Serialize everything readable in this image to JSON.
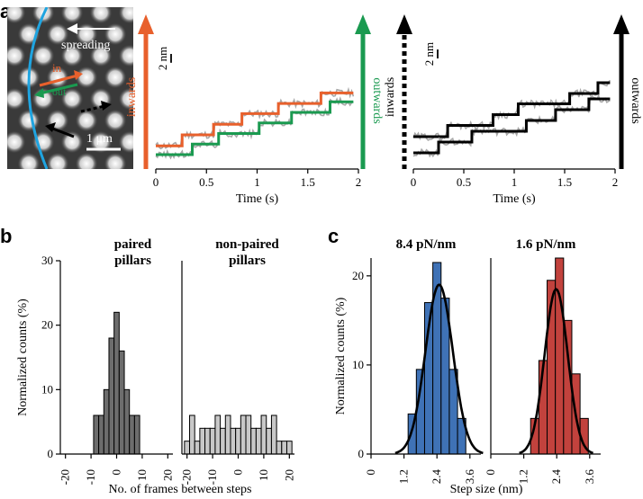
{
  "panels": {
    "a": "a",
    "b": "b",
    "c": "c"
  },
  "micrograph": {
    "spreading_label": "spreading",
    "in_label": "in",
    "out_label": "out",
    "scalebar_label": "1 μm"
  },
  "colors": {
    "inwards": "#e8602c",
    "outwards": "#1a9a50",
    "black": "#000000",
    "raw_trace": "#a8a8a8",
    "hist_dark": "#6d6d6d",
    "hist_light": "#c8c8c8",
    "hist_blue": "#3f72b6",
    "hist_red": "#c2423d",
    "membrane": "#1fa4e0"
  },
  "chart_data": [
    {
      "id": "traces-colored",
      "type": "line",
      "xlabel": "Time (s)",
      "xlim": [
        0,
        2
      ],
      "xticks": [
        "0",
        "0.5",
        "1",
        "1.5",
        "2"
      ],
      "scalebar_label": "2 nm",
      "left_arrow_label": "inwards",
      "right_arrow_label": "outwards",
      "series": [
        {
          "name": "inwards",
          "steps": [
            [
              0,
              0
            ],
            [
              0.26,
              2.5
            ],
            [
              0.57,
              4.9
            ],
            [
              0.85,
              7.3
            ],
            [
              1.21,
              9.6
            ],
            [
              1.63,
              12.0
            ],
            [
              1.95,
              12.0
            ]
          ]
        },
        {
          "name": "outwards",
          "steps": [
            [
              0,
              -2.0
            ],
            [
              0.36,
              0.4
            ],
            [
              0.62,
              2.8
            ],
            [
              1.02,
              5.2
            ],
            [
              1.34,
              7.6
            ],
            [
              1.72,
              10.0
            ],
            [
              1.95,
              10.0
            ]
          ]
        }
      ]
    },
    {
      "id": "traces-black",
      "type": "line",
      "xlabel": "Time (s)",
      "xlim": [
        0,
        2
      ],
      "xticks": [
        "0",
        "0.5",
        "1",
        "1.5",
        "2"
      ],
      "scalebar_label": "2 nm",
      "left_arrow_label": "inwards",
      "right_arrow_label": "outwards",
      "series": [
        {
          "name": "inwards",
          "steps": [
            [
              0,
              0
            ],
            [
              0.34,
              2.5
            ],
            [
              0.79,
              4.9
            ],
            [
              1.04,
              7.3
            ],
            [
              1.55,
              9.6
            ],
            [
              1.83,
              12.0
            ],
            [
              1.95,
              12.0
            ]
          ]
        },
        {
          "name": "outwards",
          "steps": [
            [
              0,
              -3.6
            ],
            [
              0.1,
              -3.6
            ],
            [
              0.25,
              -1.2
            ],
            [
              0.58,
              1.2
            ],
            [
              1.12,
              3.6
            ],
            [
              1.41,
              6.0
            ],
            [
              1.74,
              8.4
            ],
            [
              1.95,
              8.4
            ]
          ]
        }
      ]
    },
    {
      "id": "hist-paired",
      "type": "bar",
      "title": "paired\npillars",
      "ylabel": "Normalized counts (%)",
      "ylim": [
        0,
        30
      ],
      "yticks": [
        0,
        10,
        20,
        30
      ],
      "xlim": [
        -22,
        22
      ],
      "xticks": [
        -20,
        -10,
        0,
        10,
        20
      ],
      "bin_width": 2,
      "bins_start": [
        -9,
        -7,
        -5,
        -3,
        -1,
        1,
        3,
        5,
        7
      ],
      "values": [
        6,
        6,
        10,
        18,
        22,
        16,
        10,
        6,
        6
      ]
    },
    {
      "id": "hist-nonpaired",
      "type": "bar",
      "title": "non-paired\npillars",
      "xlim": [
        -22,
        22
      ],
      "xticks": [
        -20,
        -10,
        0,
        10,
        20
      ],
      "bin_width": 2,
      "bins_start": [
        -21,
        -19,
        -17,
        -15,
        -13,
        -11,
        -9,
        -7,
        -5,
        -3,
        -1,
        1,
        3,
        5,
        7,
        9,
        11,
        13,
        15,
        17,
        19
      ],
      "values": [
        2,
        6,
        2,
        4,
        4,
        4,
        6,
        4,
        6,
        4,
        4,
        6,
        6,
        4,
        4,
        6,
        4,
        6,
        2,
        2,
        2
      ],
      "shared_xlabel": "No. of frames between steps"
    },
    {
      "id": "hist-stiff",
      "type": "bar",
      "title": "8.4 pN/nm",
      "ylabel": "Normalized counts (%)",
      "ylim": [
        0,
        22
      ],
      "yticks": [
        0,
        10,
        20
      ],
      "xlim": [
        0,
        4
      ],
      "xticks": [
        "0",
        "1.2",
        "2.4",
        "3.6"
      ],
      "bin_width": 0.3,
      "bins_start": [
        1.35,
        1.65,
        1.95,
        2.25,
        2.55,
        2.85,
        3.15
      ],
      "values": [
        4.5,
        9.5,
        17.0,
        21.5,
        17.5,
        9.5,
        4.0
      ],
      "fit": {
        "mean": 2.48,
        "sd": 0.5,
        "peak": 19.0
      }
    },
    {
      "id": "hist-soft",
      "type": "bar",
      "title": "1.6 pN/nm",
      "xlim": [
        0,
        4
      ],
      "xticks": [
        "0",
        "1.2",
        "2.4",
        "3.6"
      ],
      "bin_width": 0.3,
      "bins_start": [
        1.45,
        1.75,
        2.05,
        2.35,
        2.65,
        2.95,
        3.25
      ],
      "values": [
        4.0,
        10.5,
        19.5,
        22.0,
        15.0,
        9.0,
        4.0
      ],
      "fit": {
        "mean": 2.38,
        "sd": 0.42,
        "peak": 18.5
      },
      "shared_xlabel": "Step size (nm)"
    }
  ]
}
